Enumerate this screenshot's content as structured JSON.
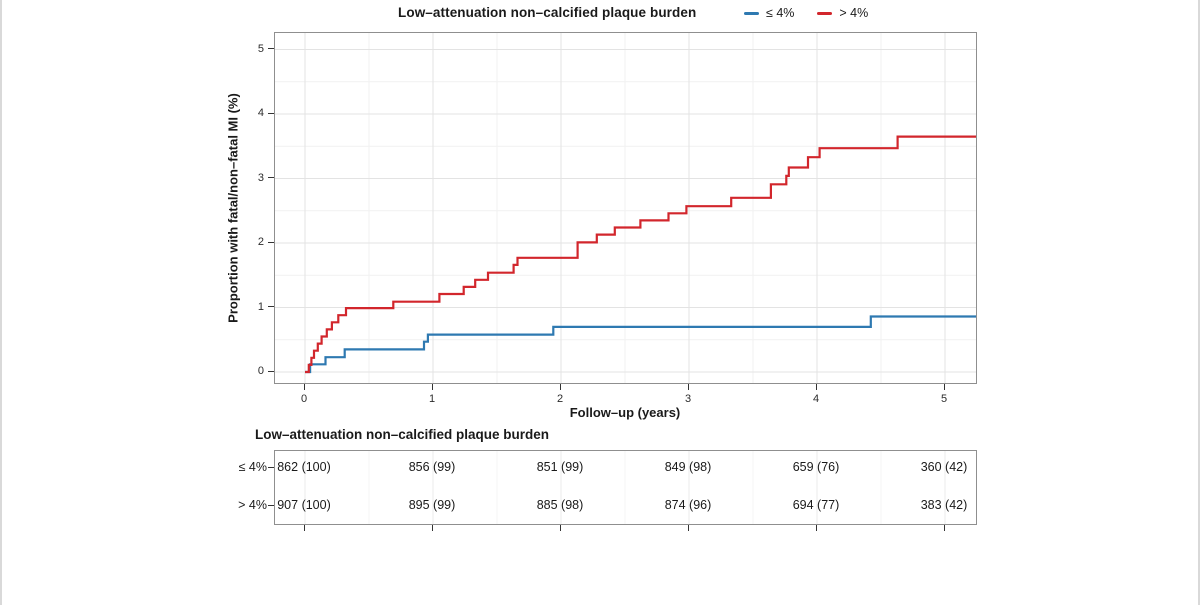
{
  "figure": {
    "title": "Low–attenuation non–calcified plaque burden",
    "legend": [
      {
        "label": "≤ 4%",
        "color": "#2e79b1"
      },
      {
        "label": "> 4%",
        "color": "#d2262c"
      }
    ],
    "x_axis": {
      "title": "Follow–up (years)",
      "ticks": [
        "0",
        "1",
        "2",
        "3",
        "4",
        "5"
      ]
    },
    "y_axis": {
      "title": "Proportion with fatal/non–fatal MI (%)",
      "ticks": [
        "0",
        "1",
        "2",
        "3",
        "4",
        "5"
      ]
    }
  },
  "chart_data": {
    "type": "line",
    "subtype": "kaplan-meier-cumulative-incidence-step",
    "title": "Low–attenuation non–calcified plaque burden",
    "xlabel": "Follow–up (years)",
    "ylabel": "Proportion with fatal/non–fatal MI (%)",
    "xlim": [
      0,
      5.25
    ],
    "ylim": [
      0,
      5
    ],
    "grid": true,
    "legend_position": "top-right",
    "series": [
      {
        "name": "≤ 4%",
        "color": "#2e79b1",
        "end_time": 5.25,
        "points": [
          [
            0.0,
            0.0
          ],
          [
            0.04,
            0.12
          ],
          [
            0.16,
            0.23
          ],
          [
            0.31,
            0.35
          ],
          [
            0.93,
            0.47
          ],
          [
            0.96,
            0.58
          ],
          [
            1.94,
            0.7
          ],
          [
            4.42,
            0.86
          ]
        ]
      },
      {
        "name": "> 4%",
        "color": "#d2262c",
        "end_time": 5.25,
        "points": [
          [
            0.0,
            0.0
          ],
          [
            0.03,
            0.11
          ],
          [
            0.05,
            0.22
          ],
          [
            0.07,
            0.33
          ],
          [
            0.1,
            0.44
          ],
          [
            0.13,
            0.55
          ],
          [
            0.17,
            0.66
          ],
          [
            0.21,
            0.77
          ],
          [
            0.26,
            0.88
          ],
          [
            0.32,
            0.99
          ],
          [
            0.69,
            1.09
          ],
          [
            1.05,
            1.21
          ],
          [
            1.24,
            1.32
          ],
          [
            1.33,
            1.43
          ],
          [
            1.43,
            1.54
          ],
          [
            1.63,
            1.66
          ],
          [
            1.66,
            1.77
          ],
          [
            2.13,
            2.01
          ],
          [
            2.28,
            2.13
          ],
          [
            2.42,
            2.24
          ],
          [
            2.62,
            2.35
          ],
          [
            2.84,
            2.46
          ],
          [
            2.98,
            2.57
          ],
          [
            3.33,
            2.7
          ],
          [
            3.64,
            2.91
          ],
          [
            3.76,
            3.04
          ],
          [
            3.78,
            3.17
          ],
          [
            3.93,
            3.33
          ],
          [
            4.02,
            3.47
          ],
          [
            4.63,
            3.65
          ]
        ]
      }
    ]
  },
  "risk_table": {
    "title": "Low–attenuation non–calcified plaque burden",
    "time_points": [
      "0",
      "1",
      "2",
      "3",
      "4",
      "5"
    ],
    "rows": [
      {
        "label": "≤ 4%",
        "values": [
          "862 (100)",
          "856 (99)",
          "851 (99)",
          "849 (98)",
          "659 (76)",
          "360 (42)"
        ]
      },
      {
        "label": "> 4%",
        "values": [
          "907 (100)",
          "895 (99)",
          "885 (98)",
          "874 (96)",
          "694 (77)",
          "383 (42)"
        ]
      }
    ]
  }
}
